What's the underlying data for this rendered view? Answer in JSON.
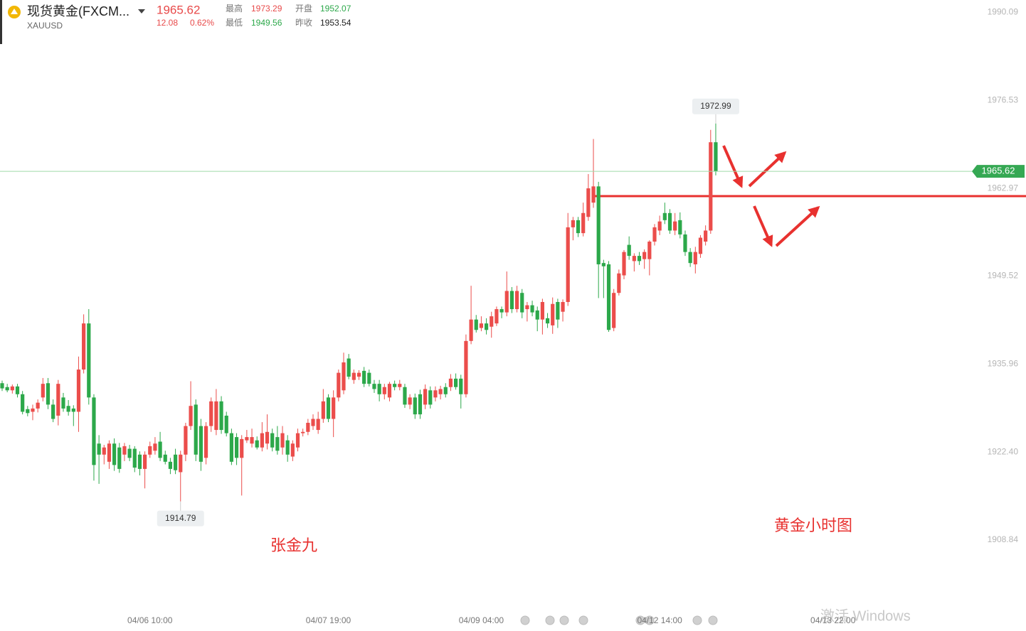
{
  "header": {
    "name": "现货黄金(FXCM...",
    "symbol": "XAUUSD",
    "price": "1965.62",
    "change": "12.08",
    "change_pct": "0.62%",
    "high_label": "最高",
    "high": "1973.29",
    "open_label": "开盘",
    "open": "1952.07",
    "low_label": "最低",
    "low": "1949.56",
    "prev_label": "昨收",
    "prev": "1953.54"
  },
  "chart_data": {
    "type": "candlestick",
    "up_color": "#eb4d4b",
    "down_color": "#2ca84a",
    "annotations": [
      "张金九",
      "黄金小时图"
    ],
    "watermark": "激活 Windows",
    "ylim": [
      1899,
      1992
    ],
    "yticks": [
      1990.09,
      1976.53,
      1962.97,
      1949.52,
      1935.96,
      {
        "value": 1922.4,
        "label": "1922.40"
      },
      1908.84
    ],
    "categories": [
      null,
      null,
      null,
      null,
      null,
      null,
      null,
      null,
      null,
      null,
      null,
      null,
      null,
      null,
      null,
      null,
      null,
      null,
      null,
      null,
      null,
      null,
      null,
      null,
      null,
      null,
      null,
      null,
      null,
      "04/06 10:00",
      null,
      null,
      null,
      null,
      null,
      null,
      null,
      null,
      null,
      null,
      null,
      null,
      null,
      null,
      null,
      null,
      null,
      null,
      null,
      null,
      null,
      null,
      null,
      null,
      null,
      null,
      null,
      null,
      null,
      null,
      null,
      null,
      null,
      null,
      "04/07 19:00",
      null,
      null,
      null,
      null,
      null,
      null,
      null,
      null,
      null,
      null,
      null,
      null,
      null,
      null,
      null,
      null,
      null,
      null,
      null,
      null,
      null,
      null,
      null,
      null,
      null,
      null,
      null,
      null,
      null,
      "04/09 04:00",
      null,
      null,
      null,
      null,
      null,
      null,
      null,
      null,
      null,
      null,
      null,
      null,
      null,
      null,
      null,
      null,
      null,
      null,
      null,
      null,
      null,
      null,
      null,
      null,
      null,
      null,
      null,
      null,
      null,
      null,
      null,
      null,
      null,
      null,
      "04/12 14:00",
      null,
      null,
      null,
      null,
      null,
      null,
      null,
      null,
      null,
      null,
      null,
      null,
      null,
      null,
      null,
      null,
      null,
      null,
      null,
      null,
      null,
      null,
      null,
      null,
      null,
      null,
      null,
      null,
      null,
      null,
      null,
      null,
      null,
      "04/13 22:00"
    ],
    "ohlc": [
      [
        1933.0,
        1933.4,
        1931.8,
        1932.2
      ],
      [
        1932.4,
        1932.9,
        1931.6,
        1931.9
      ],
      [
        1931.9,
        1932.8,
        1931.4,
        1932.5
      ],
      [
        1932.5,
        1932.9,
        1930.8,
        1931.3
      ],
      [
        1931.3,
        1931.8,
        1928.2,
        1928.6
      ],
      [
        1929.0,
        1929.5,
        1927.9,
        1928.4
      ],
      [
        1928.6,
        1929.7,
        1927.3,
        1929.1
      ],
      [
        1929.1,
        1930.5,
        1928.5,
        1930.0
      ],
      [
        1930.8,
        1933.8,
        1930.2,
        1932.9
      ],
      [
        1933.0,
        1933.8,
        1929.0,
        1929.7
      ],
      [
        1929.7,
        1930.5,
        1927.0,
        1927.5
      ],
      [
        1928.0,
        1933.5,
        1926.5,
        1932.9
      ],
      [
        1930.8,
        1931.5,
        1928.6,
        1929.1
      ],
      [
        1929.5,
        1930.4,
        1928.0,
        1928.6
      ],
      [
        1929.1,
        1929.6,
        1926.4,
        1928.6
      ],
      [
        1928.6,
        1937.1,
        1925.5,
        1935.1
      ],
      [
        1935.1,
        1943.6,
        1934.5,
        1942.2
      ],
      [
        1942.2,
        1944.4,
        1929.7,
        1930.8
      ],
      [
        1930.8,
        1931.3,
        1918.0,
        1920.4
      ],
      [
        1923.7,
        1925.0,
        1917.5,
        1922.0
      ],
      [
        1922.0,
        1923.5,
        1920.5,
        1923.1
      ],
      [
        1920.9,
        1924.2,
        1919.8,
        1923.7
      ],
      [
        1923.7,
        1924.5,
        1919.5,
        1920.4
      ],
      [
        1923.1,
        1923.8,
        1919.2,
        1919.8
      ],
      [
        1922.0,
        1923.8,
        1921.0,
        1923.3
      ],
      [
        1922.9,
        1923.5,
        1921.0,
        1921.5
      ],
      [
        1922.9,
        1923.3,
        1919.3,
        1920.0
      ],
      [
        1922.0,
        1922.5,
        1918.8,
        1919.8
      ],
      [
        1919.8,
        1922.5,
        1916.8,
        1922.0
      ],
      [
        1922.0,
        1924.0,
        1921.5,
        1923.3
      ],
      [
        1922.6,
        1924.7,
        1922.0,
        1923.7
      ],
      [
        1924.0,
        1925.5,
        1921.0,
        1921.5
      ],
      [
        1922.0,
        1922.6,
        1920.5,
        1920.9
      ],
      [
        1920.9,
        1921.5,
        1919.0,
        1919.8
      ],
      [
        1922.0,
        1922.9,
        1919.0,
        1919.6
      ],
      [
        1919.3,
        1922.6,
        1914.79,
        1922.0
      ],
      [
        1922.0,
        1926.9,
        1921.0,
        1926.4
      ],
      [
        1926.4,
        1933.3,
        1925.8,
        1929.5
      ],
      [
        1929.7,
        1930.5,
        1921.0,
        1922.0
      ],
      [
        1926.4,
        1927.5,
        1919.5,
        1920.9
      ],
      [
        1921.5,
        1927.0,
        1920.5,
        1926.4
      ],
      [
        1926.4,
        1930.8,
        1925.5,
        1930.2
      ],
      [
        1925.8,
        1932.1,
        1925.0,
        1930.2
      ],
      [
        1930.2,
        1931.0,
        1925.2,
        1925.8
      ],
      [
        1928.0,
        1928.6,
        1924.8,
        1925.3
      ],
      [
        1925.3,
        1926.0,
        1920.4,
        1920.9
      ],
      [
        1924.7,
        1925.3,
        1920.4,
        1921.5
      ],
      [
        1921.5,
        1925.0,
        1915.7,
        1924.4
      ],
      [
        1924.2,
        1925.8,
        1923.8,
        1924.7
      ],
      [
        1923.7,
        1926.0,
        1923.1,
        1924.7
      ],
      [
        1924.2,
        1924.8,
        1922.8,
        1923.1
      ],
      [
        1923.1,
        1927.0,
        1922.5,
        1925.3
      ],
      [
        1923.7,
        1928.2,
        1922.8,
        1925.5
      ],
      [
        1925.3,
        1926.0,
        1922.5,
        1923.1
      ],
      [
        1924.7,
        1926.4,
        1922.0,
        1922.6
      ],
      [
        1923.1,
        1926.4,
        1922.0,
        1925.3
      ],
      [
        1924.2,
        1925.0,
        1920.9,
        1922.0
      ],
      [
        1921.7,
        1924.2,
        1921.0,
        1923.7
      ],
      [
        1923.1,
        1926.0,
        1922.5,
        1925.3
      ],
      [
        1925.3,
        1926.0,
        1924.8,
        1925.5
      ],
      [
        1925.5,
        1927.5,
        1925.0,
        1926.9
      ],
      [
        1926.4,
        1928.2,
        1925.8,
        1927.5
      ],
      [
        1925.8,
        1928.6,
        1925.2,
        1927.5
      ],
      [
        1927.5,
        1932.1,
        1926.9,
        1930.2
      ],
      [
        1930.8,
        1931.3,
        1927.0,
        1927.5
      ],
      [
        1927.5,
        1931.9,
        1924.7,
        1930.8
      ],
      [
        1930.8,
        1935.1,
        1930.2,
        1934.6
      ],
      [
        1931.9,
        1937.7,
        1931.3,
        1936.2
      ],
      [
        1936.8,
        1937.5,
        1933.6,
        1934.0
      ],
      [
        1933.5,
        1935.1,
        1932.9,
        1934.6
      ],
      [
        1934.0,
        1935.0,
        1933.5,
        1934.6
      ],
      [
        1934.9,
        1935.5,
        1932.4,
        1932.9
      ],
      [
        1934.6,
        1935.1,
        1932.5,
        1932.9
      ],
      [
        1932.9,
        1933.5,
        1931.5,
        1932.1
      ],
      [
        1932.9,
        1933.5,
        1930.2,
        1931.3
      ],
      [
        1931.3,
        1932.9,
        1930.5,
        1932.4
      ],
      [
        1930.8,
        1933.2,
        1930.2,
        1932.9
      ],
      [
        1932.9,
        1933.4,
        1931.9,
        1932.4
      ],
      [
        1932.4,
        1933.5,
        1931.9,
        1932.9
      ],
      [
        1932.4,
        1932.9,
        1929.2,
        1929.7
      ],
      [
        1929.7,
        1931.3,
        1929.0,
        1930.8
      ],
      [
        1930.8,
        1931.4,
        1927.5,
        1928.2
      ],
      [
        1931.3,
        1932.0,
        1927.5,
        1928.2
      ],
      [
        1929.7,
        1932.8,
        1929.0,
        1932.1
      ],
      [
        1931.9,
        1932.5,
        1929.1,
        1929.7
      ],
      [
        1930.8,
        1932.5,
        1930.2,
        1931.9
      ],
      [
        1931.3,
        1932.6,
        1930.5,
        1932.1
      ],
      [
        1932.4,
        1933.0,
        1930.8,
        1931.3
      ],
      [
        1932.4,
        1934.4,
        1931.8,
        1933.7
      ],
      [
        1933.7,
        1934.5,
        1932.0,
        1932.4
      ],
      [
        1933.7,
        1934.3,
        1929.1,
        1931.3
      ],
      [
        1931.3,
        1940.5,
        1930.8,
        1939.5
      ],
      [
        1939.5,
        1948.0,
        1939.0,
        1942.8
      ],
      [
        1942.8,
        1943.5,
        1940.8,
        1941.2
      ],
      [
        1941.5,
        1943.3,
        1941.0,
        1942.2
      ],
      [
        1942.2,
        1943.0,
        1940.5,
        1941.2
      ],
      [
        1941.7,
        1944.0,
        1940.0,
        1943.3
      ],
      [
        1942.2,
        1944.8,
        1941.8,
        1944.4
      ],
      [
        1944.4,
        1944.8,
        1943.0,
        1943.9
      ],
      [
        1943.9,
        1950.2,
        1943.3,
        1947.2
      ],
      [
        1947.2,
        1947.8,
        1943.8,
        1944.4
      ],
      [
        1944.4,
        1948.0,
        1943.9,
        1947.2
      ],
      [
        1946.9,
        1947.5,
        1943.0,
        1943.9
      ],
      [
        1944.4,
        1945.5,
        1942.5,
        1945.0
      ],
      [
        1945.0,
        1945.7,
        1943.3,
        1943.9
      ],
      [
        1944.2,
        1944.8,
        1941.0,
        1942.8
      ],
      [
        1942.8,
        1946.0,
        1940.5,
        1945.5
      ],
      [
        1943.0,
        1943.8,
        1941.5,
        1942.2
      ],
      [
        1941.9,
        1946.2,
        1940.6,
        1945.2
      ],
      [
        1945.5,
        1946.0,
        1941.5,
        1942.8
      ],
      [
        1944.0,
        1945.9,
        1942.5,
        1945.5
      ],
      [
        1945.5,
        1959.2,
        1944.9,
        1957.0
      ],
      [
        1957.0,
        1958.6,
        1955.0,
        1958.1
      ],
      [
        1958.1,
        1958.6,
        1955.5,
        1956.1
      ],
      [
        1956.1,
        1960.8,
        1955.6,
        1959.2
      ],
      [
        1958.6,
        1965.2,
        1958.0,
        1963.0
      ],
      [
        1960.8,
        1970.6,
        1960.0,
        1963.3
      ],
      [
        1963.3,
        1964.0,
        1946.1,
        1951.3
      ],
      [
        1951.5,
        1952.0,
        1946.1,
        1951.0
      ],
      [
        1951.3,
        1951.8,
        1940.9,
        1941.2
      ],
      [
        1941.5,
        1947.5,
        1941.0,
        1946.9
      ],
      [
        1946.9,
        1950.5,
        1946.5,
        1949.9
      ],
      [
        1949.6,
        1953.5,
        1949.0,
        1953.2
      ],
      [
        1954.3,
        1955.6,
        1952.0,
        1952.6
      ],
      [
        1951.8,
        1953.0,
        1950.2,
        1952.6
      ],
      [
        1952.6,
        1953.2,
        1951.2,
        1951.8
      ],
      [
        1952.1,
        1953.6,
        1950.6,
        1953.2
      ],
      [
        1952.1,
        1955.0,
        1949.6,
        1954.8
      ],
      [
        1954.8,
        1957.5,
        1954.2,
        1957.0
      ],
      [
        1956.5,
        1958.8,
        1955.8,
        1957.9
      ],
      [
        1959.2,
        1960.8,
        1957.5,
        1958.1
      ],
      [
        1959.2,
        1959.8,
        1956.0,
        1956.5
      ],
      [
        1956.5,
        1959.2,
        1955.8,
        1957.9
      ],
      [
        1958.1,
        1959.3,
        1955.3,
        1955.9
      ],
      [
        1955.9,
        1956.5,
        1952.6,
        1953.2
      ],
      [
        1953.2,
        1953.8,
        1950.9,
        1951.5
      ],
      [
        1951.3,
        1954.0,
        1949.9,
        1953.2
      ],
      [
        1952.9,
        1955.8,
        1952.3,
        1955.4
      ],
      [
        1954.8,
        1957.3,
        1954.2,
        1956.5
      ],
      [
        1956.5,
        1972.0,
        1956.0,
        1970.1
      ],
      [
        1970.1,
        1972.99,
        1965.0,
        1965.62
      ],
      null,
      null,
      null,
      null,
      null,
      null,
      null,
      null,
      null,
      null,
      null,
      null,
      null,
      null,
      null,
      null,
      null,
      null,
      null,
      null,
      null,
      null,
      null,
      null,
      null,
      null,
      null
    ]
  }
}
